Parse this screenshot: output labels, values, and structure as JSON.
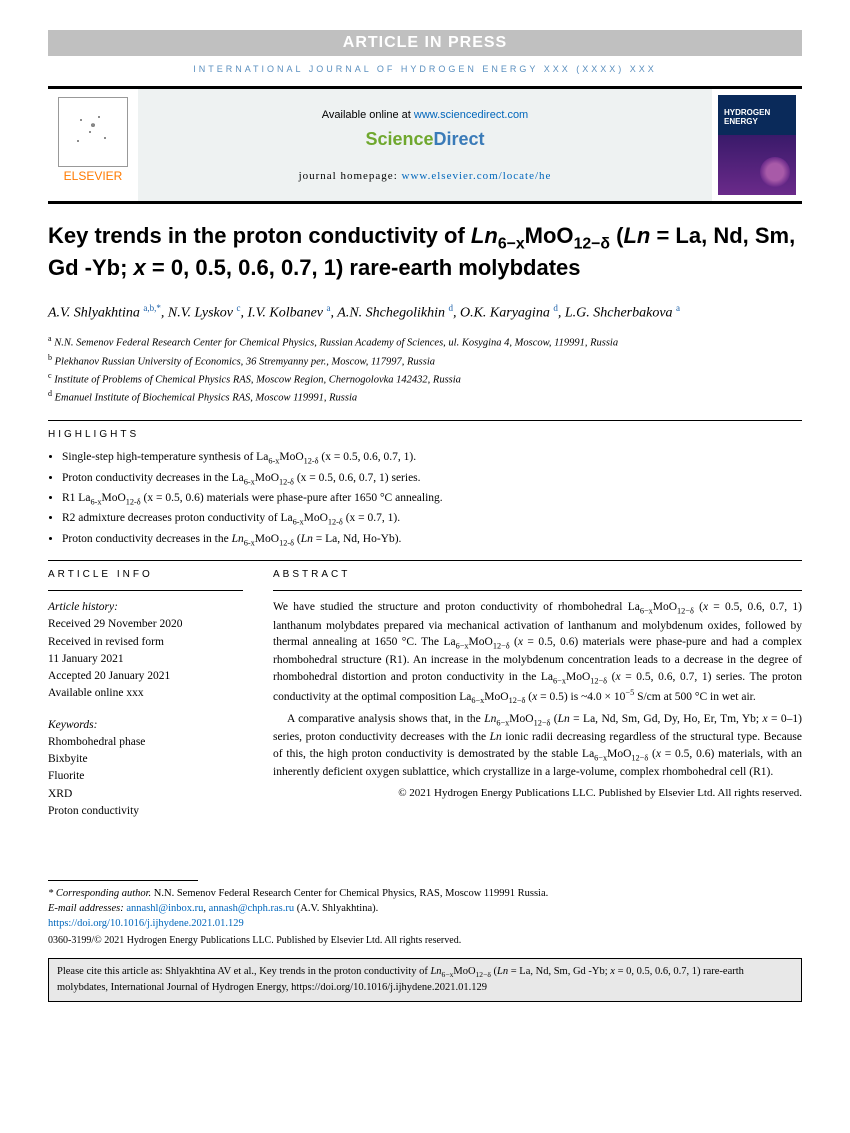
{
  "press_banner": "ARTICLE IN PRESS",
  "journal_header": "INTERNATIONAL JOURNAL OF HYDROGEN ENERGY XXX (XXXX) XXX",
  "elsevier_label": "ELSEVIER",
  "sd_available_prefix": "Available online at ",
  "sd_url": "www.sciencedirect.com",
  "sd_logo_a": "Science",
  "sd_logo_b": "Direct",
  "sd_homepage_prefix": "journal homepage: ",
  "sd_homepage_url": "www.elsevier.com/locate/he",
  "cover_text": "International Journal of HYDROGEN ENERGY",
  "title_html": "Key trends in the proton conductivity of <span class='formula'>Ln</span><sub>6−x</sub>MoO<sub>12−δ</sub> (<span class='formula'>Ln</span> = La, Nd, Sm, Gd -Yb; <span class='formula'>x</span> = 0, 0.5, 0.6, 0.7, 1) rare-earth molybdates",
  "authors_html": "A.V. Shlyakhtina <sup>a,b,</sup><sup class='star'>*</sup>, N.V. Lyskov <sup>c</sup>, I.V. Kolbanev <sup>a</sup>, A.N. Shchegolikhin <sup>d</sup>, O.K. Karyagina <sup>d</sup>, L.G. Shcherbakova <sup>a</sup>",
  "affiliations": [
    "<sup>a</sup> N.N. Semenov Federal Research Center for Chemical Physics, Russian Academy of Sciences, ul. Kosygina 4, Moscow, 119991, Russia",
    "<sup>b</sup> Plekhanov Russian University of Economics, 36 Stremyanny per., Moscow, 117997, Russia",
    "<sup>c</sup> Institute of Problems of Chemical Physics RAS, Moscow Region, Chernogolovka 142432, Russia",
    "<sup>d</sup> Emanuel Institute of Biochemical Physics RAS, Moscow 119991, Russia"
  ],
  "highlights_label": "HIGHLIGHTS",
  "highlights": [
    "Single-step high-temperature synthesis of La<sub>6-x</sub>MoO<sub>12-δ</sub> (x = 0.5, 0.6, 0.7, 1).",
    "Proton conductivity decreases in the La<sub>6-x</sub>MoO<sub>12-δ</sub> (x = 0.5, 0.6, 0.7, 1) series.",
    "R1 La<sub>6-x</sub>MoO<sub>12-δ</sub> (x = 0.5, 0.6) materials were phase-pure after 1650 °C annealing.",
    "R2 admixture decreases proton conductivity of La<sub>6-x</sub>MoO<sub>12-δ</sub> (x = 0.7, 1).",
    "Proton conductivity decreases in the <i>Ln</i><sub>6-x</sub>MoO<sub>12-δ</sub> (<i>Ln</i> = La, Nd, Ho-Yb)."
  ],
  "article_info_label": "ARTICLE INFO",
  "history_label": "Article history:",
  "history": [
    "Received 29 November 2020",
    "Received in revised form",
    "11 January 2021",
    "Accepted 20 January 2021",
    "Available online xxx"
  ],
  "keywords_label": "Keywords:",
  "keywords": [
    "Rhombohedral phase",
    "Bixbyite",
    "Fluorite",
    "XRD",
    "Proton conductivity"
  ],
  "abstract_label": "ABSTRACT",
  "abstract_paragraphs": [
    "We have studied the structure and proton conductivity of rhombohedral La<sub>6−x</sub>MoO<sub>12−δ</sub> (<i>x</i> = 0.5, 0.6, 0.7, 1) lanthanum molybdates prepared via mechanical activation of lanthanum and molybdenum oxides, followed by thermal annealing at 1650 °C. The La<sub>6−x</sub>MoO<sub>12−δ</sub> (<i>x</i> = 0.5, 0.6) materials were phase-pure and had a complex rhombohedral structure (R1). An increase in the molybdenum concentration leads to a decrease in the degree of rhombohedral distortion and proton conductivity in the La<sub>6−x</sub>MoO<sub>12−δ</sub> (<i>x</i> = 0.5, 0.6, 0.7, 1) series. The proton conductivity at the optimal composition La<sub>6−x</sub>MoO<sub>12−δ</sub> (<i>x</i> = 0.5) is ~4.0 × 10<sup>−5</sup> S/cm at 500 °C in wet air.",
    "A comparative analysis shows that, in the <i>Ln</i><sub>6−x</sub>MoO<sub>12−δ</sub> (<i>Ln</i> = La, Nd, Sm, Gd, Dy, Ho, Er, Tm, Yb; <i>x</i> = 0–1) series, proton conductivity decreases with the <i>Ln</i> ionic radii decreasing regardless of the structural type. Because of this, the high proton conductivity is demostrated by the stable La<sub>6−x</sub>MoO<sub>12−δ</sub> (<i>x</i> = 0.5, 0.6) materials, with an inherently deficient oxygen sublattice, which crystallize in a large-volume, complex rhombohedral cell (R1)."
  ],
  "copyright": "© 2021 Hydrogen Energy Publications LLC. Published by Elsevier Ltd. All rights reserved.",
  "corresponding_label": "* Corresponding author.",
  "corresponding_text": " N.N. Semenov Federal Research Center for Chemical Physics, RAS, Moscow 119991 Russia.",
  "email_prefix": "E-mail addresses: ",
  "email1": "annashl@inbox.ru",
  "email2": "annash@chph.ras.ru",
  "email_suffix": " (A.V. Shlyakhtina).",
  "doi": "https://doi.org/10.1016/j.ijhydene.2021.01.129",
  "issn": "0360-3199/© 2021 Hydrogen Energy Publications LLC. Published by Elsevier Ltd. All rights reserved.",
  "cite_box": "Please cite this article as: Shlyakhtina AV et al., Key trends in the proton conductivity of <i>Ln</i><sub>6−x</sub>MoO<sub>12−δ</sub> (<i>Ln</i> = La, Nd, Sm, Gd -Yb; <i>x</i> = 0, 0.5, 0.6, 0.7, 1) rare-earth molybdates, International Journal of Hydrogen Energy, https://doi.org/10.1016/j.ijhydene.2021.01.129",
  "colors": {
    "banner_bg": "#c0c0c0",
    "link_blue": "#0066bb",
    "header_blue": "#5a8fbf",
    "elsevier_orange": "#ff7a00",
    "sd_green": "#6fa82e",
    "sd_blue": "#3a7bb8",
    "cover_top": "#0a2a5a",
    "cover_bottom": "#6a2a8a"
  }
}
